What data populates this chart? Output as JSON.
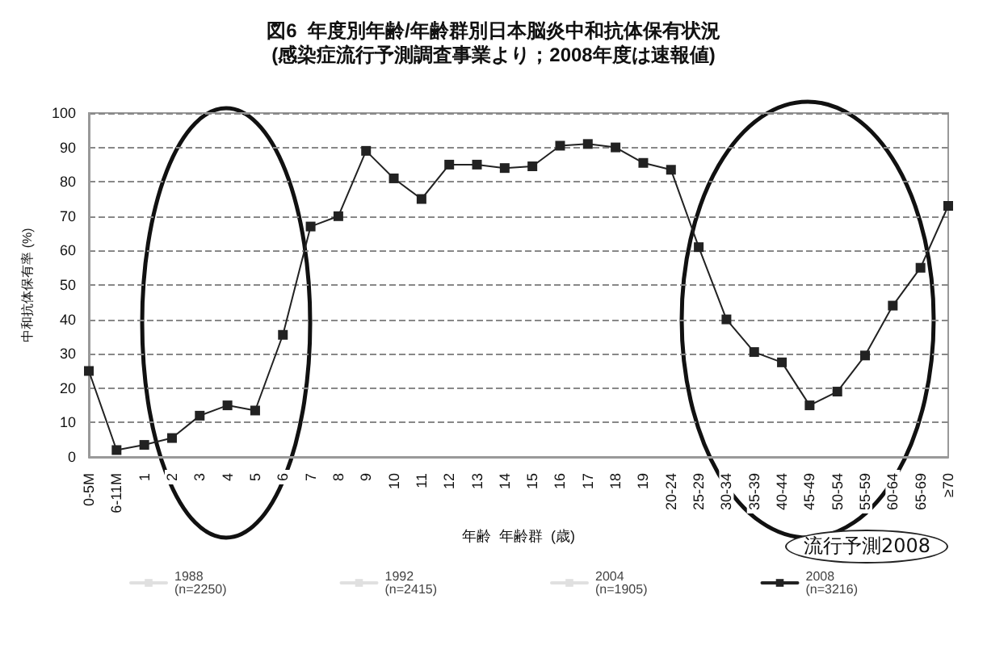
{
  "chart_data": {
    "type": "line",
    "title": "図6  年度別年齢/年齢群別日本脳炎中和抗体保有状況",
    "subtitle": "(感染症流行予測調査事業より；2008年度は速報値)",
    "xlabel": "年齢  年齢群  (歳)",
    "ylabel": "中和抗体保有率 (%)",
    "categories": [
      "0-5M",
      "6-11M",
      "1",
      "2",
      "3",
      "4",
      "5",
      "6",
      "7",
      "8",
      "9",
      "10",
      "11",
      "12",
      "13",
      "14",
      "15",
      "16",
      "17",
      "18",
      "19",
      "20-24",
      "25-29",
      "30-34",
      "35-39",
      "40-44",
      "45-49",
      "50-54",
      "55-59",
      "60-64",
      "65-69",
      "≥70"
    ],
    "series": [
      {
        "name": "1988\n(n=2250)",
        "color": "#e0e0e0",
        "values": [
          null,
          null,
          null,
          null,
          null,
          null,
          null,
          null,
          null,
          null,
          null,
          null,
          null,
          null,
          null,
          null,
          null,
          null,
          null,
          null,
          null,
          null,
          null,
          null,
          null,
          null,
          null,
          null,
          null,
          null,
          null,
          null
        ]
      },
      {
        "name": "1992\n(n=2415)",
        "color": "#e0e0e0",
        "values": [
          null,
          null,
          null,
          null,
          null,
          null,
          null,
          null,
          null,
          null,
          null,
          null,
          null,
          null,
          null,
          null,
          null,
          null,
          null,
          null,
          null,
          null,
          null,
          null,
          null,
          null,
          null,
          null,
          null,
          null,
          null,
          null
        ]
      },
      {
        "name": "2004\n(n=1905)",
        "color": "#e0e0e0",
        "values": [
          null,
          null,
          null,
          null,
          null,
          null,
          null,
          null,
          null,
          null,
          null,
          null,
          null,
          null,
          null,
          null,
          null,
          null,
          null,
          null,
          null,
          null,
          null,
          null,
          null,
          null,
          null,
          null,
          null,
          null,
          null,
          null
        ]
      },
      {
        "name": "2008\n(n=3216)",
        "color": "#222222",
        "values": [
          25,
          2,
          3.5,
          5.5,
          12,
          15,
          13.5,
          35.5,
          67,
          70,
          89,
          81,
          75,
          85,
          85,
          84,
          84.5,
          90.5,
          91,
          90,
          85.5,
          83.5,
          61,
          40,
          30.5,
          27.5,
          15,
          19,
          29.5,
          44,
          55,
          73
        ]
      }
    ],
    "ylim": [
      0,
      100
    ],
    "yticks": [
      0,
      10,
      20,
      30,
      40,
      50,
      60,
      70,
      80,
      90,
      100
    ],
    "grid": "y",
    "legend": "bottom",
    "marker": "square",
    "line_style": "solid",
    "annotations": [
      "流行予測2008"
    ]
  }
}
